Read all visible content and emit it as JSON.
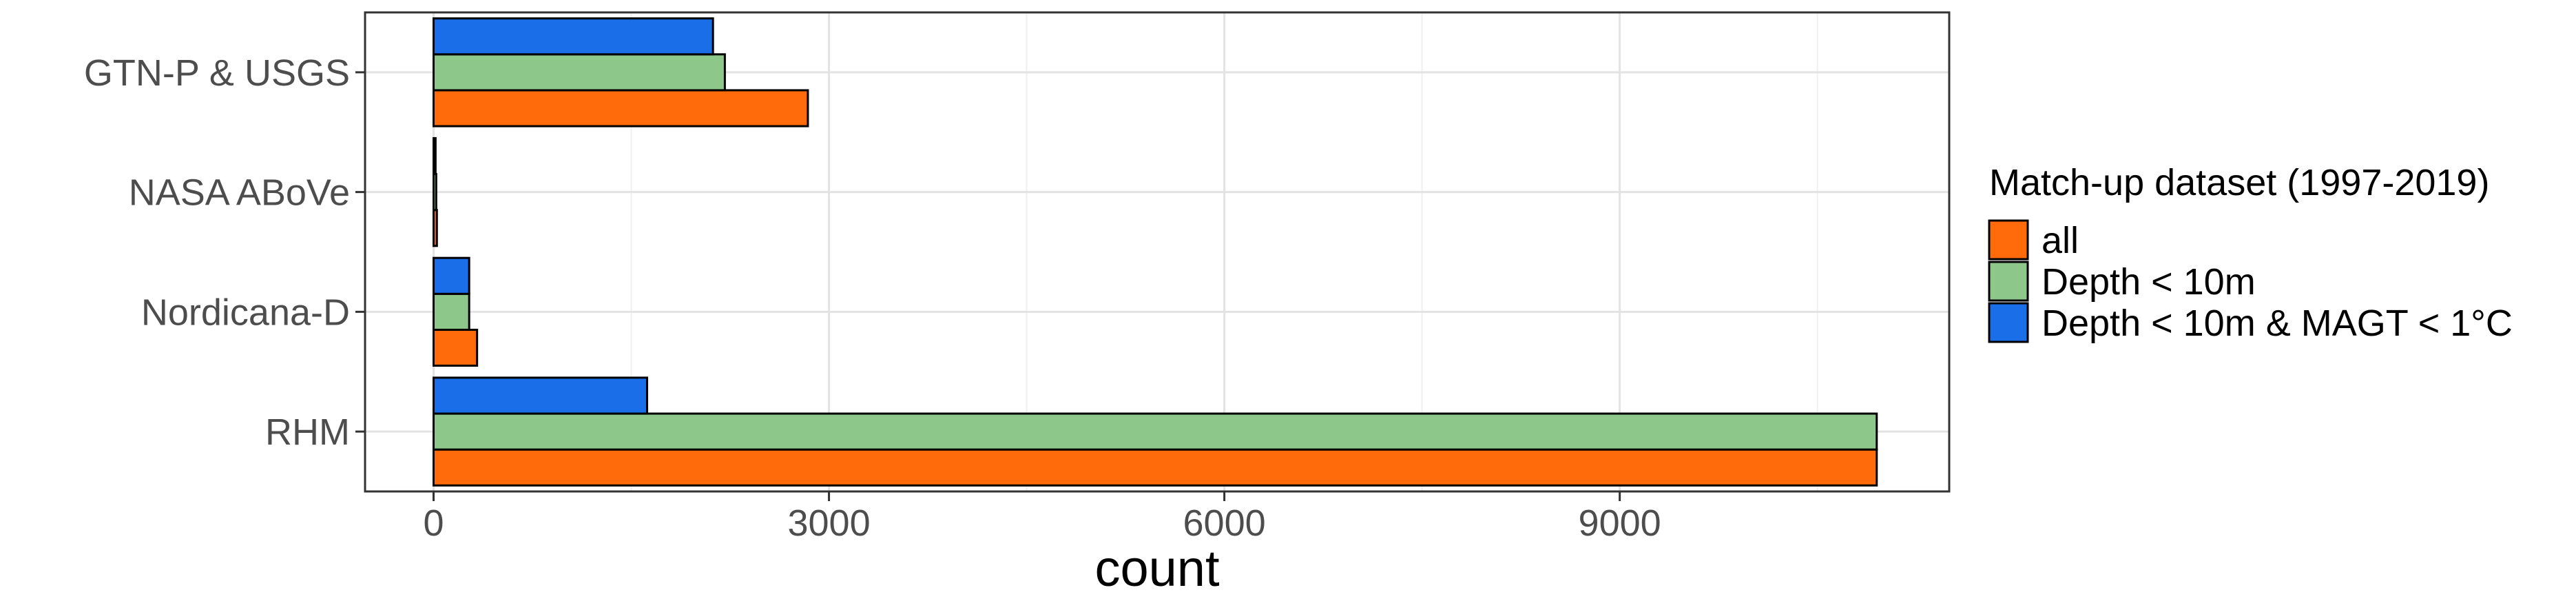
{
  "chart_data": {
    "type": "bar",
    "orientation": "horizontal",
    "categories": [
      "RHM",
      "Nordicana-D",
      "NASA ABoVe",
      "GTN-P & USGS"
    ],
    "series": [
      {
        "name": "all",
        "color": "#FF6A0A",
        "values": [
          10950,
          330,
          25,
          2840
        ]
      },
      {
        "name": "Depth < 10m",
        "color": "#8DC88A",
        "values": [
          10950,
          270,
          20,
          2210
        ]
      },
      {
        "name": "Depth < 10m & MAGT < 1°C",
        "color": "#1A6EE8",
        "values": [
          1620,
          270,
          15,
          2120
        ]
      }
    ],
    "xlabel": "count",
    "ylabel": "",
    "xlim": [
      -520,
      11500
    ],
    "xticks": [
      0,
      3000,
      6000,
      9000
    ],
    "grid": true,
    "legend": {
      "title": "Match-up dataset (1997-2019)",
      "position": "right"
    }
  }
}
